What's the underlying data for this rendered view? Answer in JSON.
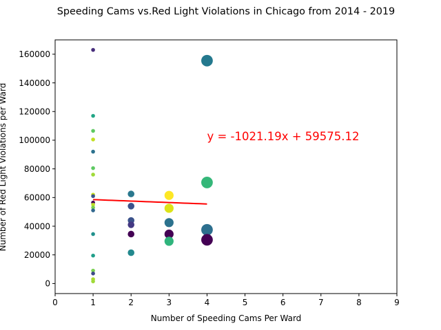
{
  "chart_data": {
    "type": "scatter",
    "title": "Speeding Cams vs.Red Light Violations in Chicago from 2014 - 2019",
    "xlabel": "Number of Speeding Cams Per Ward",
    "ylabel": "Number of Red Light Violations per Ward",
    "xlim": [
      0,
      9
    ],
    "ylim": [
      -7000,
      170000
    ],
    "xticks": [
      0,
      1,
      2,
      3,
      4,
      5,
      6,
      7,
      8,
      9
    ],
    "yticks": [
      0,
      20000,
      40000,
      60000,
      80000,
      100000,
      120000,
      140000,
      160000
    ],
    "grid": false,
    "points": [
      {
        "x": 1,
        "y": 163000,
        "color": "#472d7b"
      },
      {
        "x": 1,
        "y": 117000,
        "color": "#21a585"
      },
      {
        "x": 1,
        "y": 106500,
        "color": "#5ec962"
      },
      {
        "x": 1,
        "y": 100500,
        "color": "#c2df23"
      },
      {
        "x": 1,
        "y": 92000,
        "color": "#2c728e"
      },
      {
        "x": 1,
        "y": 80500,
        "color": "#5ec962"
      },
      {
        "x": 1,
        "y": 76000,
        "color": "#a0da39"
      },
      {
        "x": 1,
        "y": 62000,
        "color": "#c8e020"
      },
      {
        "x": 1,
        "y": 61000,
        "color": "#3b528b"
      },
      {
        "x": 1,
        "y": 56500,
        "color": "#440154"
      },
      {
        "x": 1,
        "y": 55000,
        "color": "#bddf26"
      },
      {
        "x": 1,
        "y": 53000,
        "color": "#7ad151"
      },
      {
        "x": 1,
        "y": 51000,
        "color": "#31688e"
      },
      {
        "x": 1,
        "y": 34500,
        "color": "#21918c"
      },
      {
        "x": 1,
        "y": 19500,
        "color": "#1f9e89"
      },
      {
        "x": 1,
        "y": 9000,
        "color": "#7ad151"
      },
      {
        "x": 1,
        "y": 7000,
        "color": "#3e4989"
      },
      {
        "x": 1,
        "y": 3000,
        "color": "#addc30"
      },
      {
        "x": 1,
        "y": 1500,
        "color": "#a0da39"
      },
      {
        "x": 2,
        "y": 62500,
        "color": "#2a788e"
      },
      {
        "x": 2,
        "y": 54000,
        "color": "#3b528b"
      },
      {
        "x": 2,
        "y": 44000,
        "color": "#3b528b"
      },
      {
        "x": 2,
        "y": 41000,
        "color": "#443983"
      },
      {
        "x": 2,
        "y": 34500,
        "color": "#440154"
      },
      {
        "x": 2,
        "y": 21500,
        "color": "#23898e"
      },
      {
        "x": 3,
        "y": 61500,
        "color": "#fde725"
      },
      {
        "x": 3,
        "y": 52500,
        "color": "#dde318"
      },
      {
        "x": 3,
        "y": 42500,
        "color": "#2c728e"
      },
      {
        "x": 3,
        "y": 34500,
        "color": "#440154"
      },
      {
        "x": 3,
        "y": 29500,
        "color": "#2fb47c"
      },
      {
        "x": 4,
        "y": 155500,
        "color": "#24798e"
      },
      {
        "x": 4,
        "y": 70500,
        "color": "#35b779"
      },
      {
        "x": 4,
        "y": 37500,
        "color": "#2d6f8e"
      },
      {
        "x": 4,
        "y": 30500,
        "color": "#440154"
      }
    ],
    "regression": {
      "x_start": 1,
      "x_end": 4,
      "slope": -1021.19,
      "intercept": 59575.12,
      "color": "#ff0000"
    },
    "annotation": {
      "text": "y = -1021.19x + 59575.12",
      "x": 4,
      "y": 100000,
      "color": "#ff0000"
    }
  }
}
